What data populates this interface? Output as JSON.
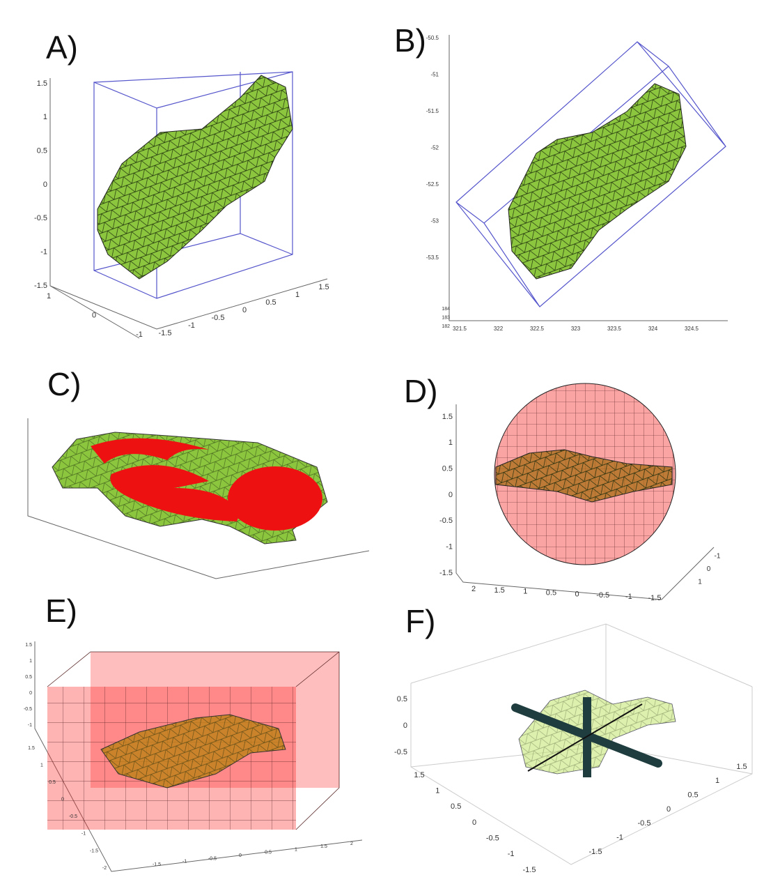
{
  "panels": [
    {
      "label": "A)",
      "axes": [
        [
          "1.5",
          "1",
          "0.5",
          "0",
          "-0.5",
          "-1",
          "-1.5"
        ],
        [
          "1",
          "0",
          "-1"
        ],
        [
          "-1.5",
          "-1",
          "-0.5",
          "0",
          "0.5",
          "1",
          "1.5"
        ]
      ]
    },
    {
      "label": "B)",
      "axes": [
        [
          "-50.5",
          "-51",
          "-51.5",
          "-52",
          "-52.5",
          "-53",
          "-53.5"
        ],
        [
          "184",
          "183",
          "182"
        ],
        [
          "321.5",
          "322",
          "322.5",
          "323",
          "323.5",
          "324",
          "324.5"
        ]
      ]
    },
    {
      "label": "C)"
    },
    {
      "label": "D)",
      "axes": [
        [
          "1.5",
          "1",
          "0.5",
          "0",
          "-0.5",
          "-1",
          "-1.5"
        ],
        [
          "2",
          "1.5",
          "1",
          "0.5",
          "0",
          "-0.5",
          "-1",
          "-1.5"
        ],
        [
          "-1",
          "0",
          "1"
        ]
      ]
    },
    {
      "label": "E)",
      "axes": [
        [
          "1.5",
          "1",
          "0.5",
          "0",
          "-0.5",
          "-1"
        ],
        [
          "1.5",
          "1",
          "0.5",
          "0",
          "-0.5",
          "-1",
          "-1.5",
          "-2"
        ],
        [
          "-1.5",
          "-1",
          "-0.5",
          "0",
          "0.5",
          "1",
          "1.5",
          "2"
        ]
      ]
    },
    {
      "label": "F)",
      "axes": [
        [
          "0.5",
          "0",
          "-0.5"
        ],
        [
          "1.5",
          "1",
          "0.5",
          "0",
          "-0.5",
          "-1",
          "-1.5"
        ],
        [
          "-1.5",
          "-1",
          "-0.5",
          "0",
          "0.5",
          "1",
          "1.5"
        ]
      ]
    }
  ]
}
